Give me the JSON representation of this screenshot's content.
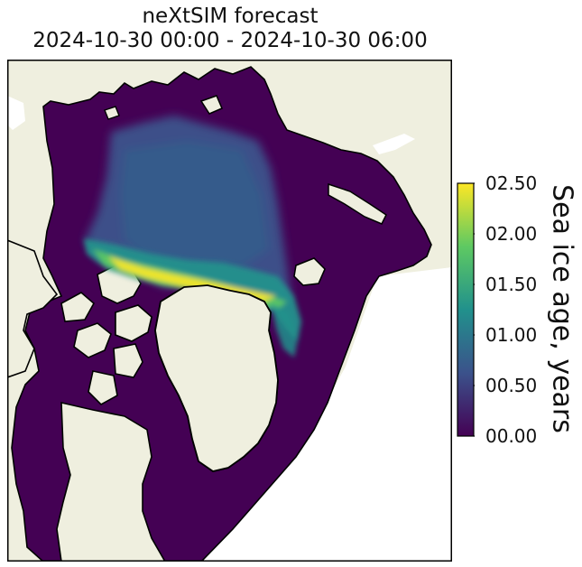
{
  "title": {
    "line1": "neXtSIM forecast",
    "line2": "2024-10-30 00:00 - 2024-10-30 06:00"
  },
  "colorbar": {
    "label": "Sea ice age, years",
    "ticks": [
      "00.00",
      "00.50",
      "01.00",
      "01.50",
      "02.00",
      "02.50"
    ],
    "range": [
      0,
      2.5
    ],
    "colormap": "viridis",
    "colors": [
      "#440154",
      "#3b528b",
      "#21918c",
      "#5ec962",
      "#fde725"
    ]
  },
  "map": {
    "projection": "polar stereographic (Arctic)",
    "land_color": "#efefdf",
    "ocean_color": "#ffffff",
    "low_age_color": "#440154"
  }
}
